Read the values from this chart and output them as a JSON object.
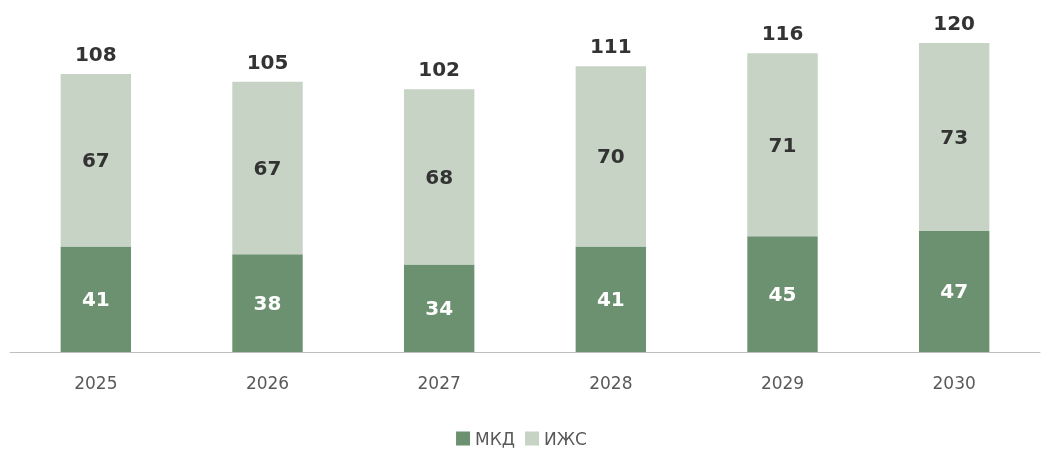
{
  "chart_data": {
    "type": "bar",
    "stacked": true,
    "data_labels": true,
    "legend": "bottom",
    "categories": [
      "2025",
      "2026",
      "2027",
      "2028",
      "2029",
      "2030"
    ],
    "series": [
      {
        "name": "МКД",
        "color": "#6b9170",
        "values": [
          41,
          38,
          34,
          41,
          45,
          47
        ]
      },
      {
        "name": "ИЖС",
        "color": "#c6d3c5",
        "values": [
          67,
          67,
          68,
          70,
          71,
          73
        ]
      }
    ],
    "totals": [
      "108",
      "105",
      "102",
      "111",
      "116",
      "120"
    ]
  }
}
